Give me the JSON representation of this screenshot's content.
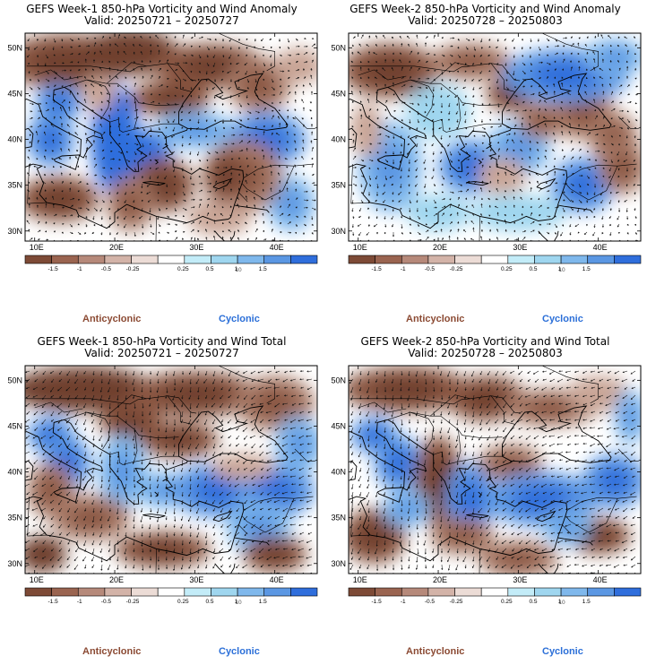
{
  "panels": [
    {
      "id": "p1",
      "title": "GEFS Week-1 850-hPa Vorticity and Wind Anomaly",
      "valid": "Valid: 20250721 – 20250727"
    },
    {
      "id": "p2",
      "title": "GEFS Week-2 850-hPa Vorticity and Wind Anomaly",
      "valid": "Valid: 20250728 – 20250803"
    },
    {
      "id": "p3",
      "title": "GEFS Week-1 850-hPa Vorticity and Wind Total",
      "valid": "Valid: 20250721 – 20250727"
    },
    {
      "id": "p4",
      "title": "GEFS Week-2 850-hPa Vorticity and Wind Total",
      "valid": "Valid: 20250728 – 20250803"
    }
  ],
  "axes": {
    "lat_labels": [
      "50N",
      "45N",
      "40N",
      "35N",
      "30N"
    ],
    "lon_labels": [
      "10E",
      "20E",
      "30E",
      "40E"
    ]
  },
  "legend": {
    "labels": [
      "-1.5",
      "-1",
      "-0.5",
      "-0.25",
      "0.25",
      "0.5",
      "1",
      "1.5"
    ],
    "colors": [
      "#7d4a36",
      "#9a6450",
      "#b6897a",
      "#d3b3a8",
      "#ecdcd6",
      "#ffffff",
      "#c3ecf8",
      "#9fd6ef",
      "#7fb8ec",
      "#5b97e3",
      "#2f6edc"
    ],
    "unit": "10",
    "left_label": "Anticyclonic",
    "right_label": "Cyclonic"
  },
  "colors": {
    "anticyclonic": "#8b4a33",
    "cyclonic": "#2b6fd8",
    "coast": "#000000"
  }
}
